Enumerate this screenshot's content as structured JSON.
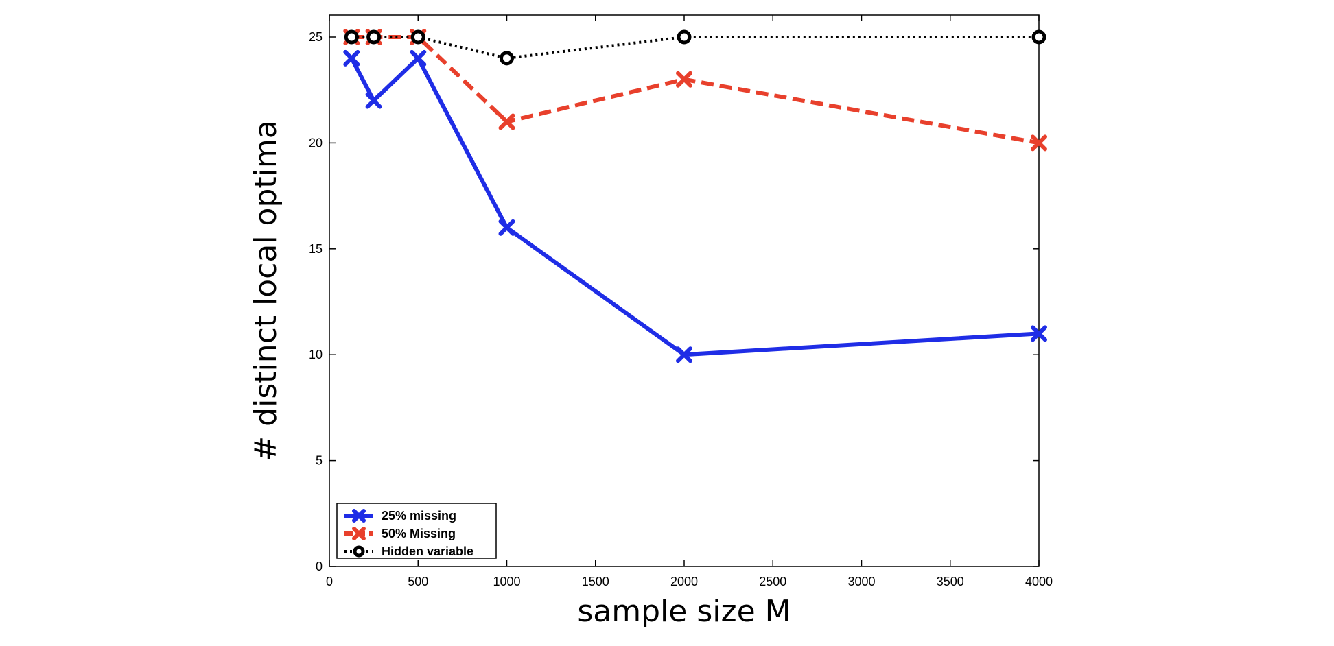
{
  "chart_data": {
    "type": "line",
    "xlabel": "sample size M",
    "ylabel": "# distinct local optima",
    "xlim": [
      0,
      4000
    ],
    "ylim": [
      0,
      26
    ],
    "xticks": [
      0,
      500,
      1000,
      1500,
      2000,
      2500,
      3000,
      3500,
      4000
    ],
    "yticks": [
      0,
      5,
      10,
      15,
      20,
      25
    ],
    "grid": false,
    "legend_position": "bottom-left",
    "series": [
      {
        "name": "25% missing",
        "color": "#1f2de6",
        "line": "solid",
        "marker": "x",
        "x": [
          125,
          250,
          500,
          1000,
          2000,
          4000
        ],
        "y": [
          24,
          22,
          24,
          16,
          10,
          11
        ]
      },
      {
        "name": "50% Missing",
        "color": "#e8402c",
        "line": "dashed",
        "marker": "x",
        "x": [
          125,
          250,
          500,
          1000,
          2000,
          4000
        ],
        "y": [
          25,
          25,
          25,
          21,
          23,
          20
        ]
      },
      {
        "name": "Hidden variable",
        "color": "#000000",
        "line": "dotted",
        "marker": "o",
        "x": [
          125,
          250,
          500,
          1000,
          2000,
          4000
        ],
        "y": [
          25,
          25,
          25,
          24,
          25,
          25
        ]
      }
    ]
  }
}
